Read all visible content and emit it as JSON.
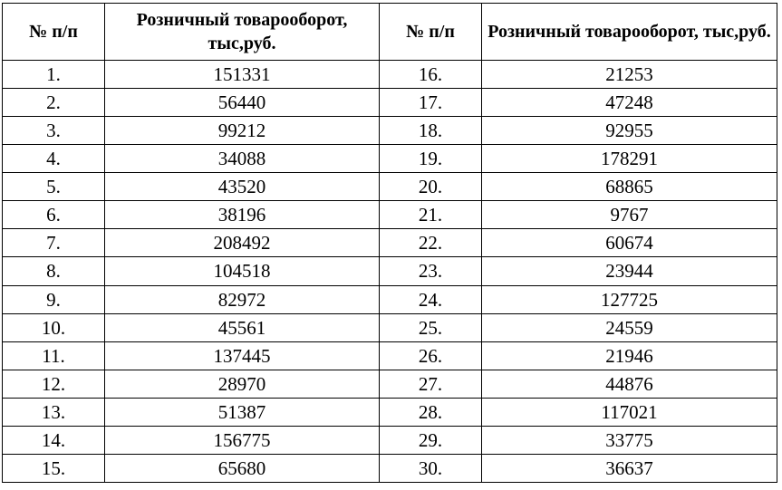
{
  "headers": {
    "num_left": "№ п/п",
    "value_left": "Розничный товарооборот, тыс,руб.",
    "num_right": "№ п/п",
    "value_right": "Розничный товарооборот, тыс,руб."
  },
  "rows": [
    {
      "left_num": "1.",
      "left_val": "151331",
      "right_num": "16.",
      "right_val": "21253"
    },
    {
      "left_num": "2.",
      "left_val": "56440",
      "right_num": "17.",
      "right_val": "47248"
    },
    {
      "left_num": "3.",
      "left_val": "99212",
      "right_num": "18.",
      "right_val": "92955"
    },
    {
      "left_num": "4.",
      "left_val": "34088",
      "right_num": "19.",
      "right_val": "178291"
    },
    {
      "left_num": "5.",
      "left_val": "43520",
      "right_num": "20.",
      "right_val": "68865"
    },
    {
      "left_num": "6.",
      "left_val": "38196",
      "right_num": "21.",
      "right_val": "9767"
    },
    {
      "left_num": "7.",
      "left_val": "208492",
      "right_num": "22.",
      "right_val": "60674"
    },
    {
      "left_num": "8.",
      "left_val": "104518",
      "right_num": "23.",
      "right_val": "23944"
    },
    {
      "left_num": "9.",
      "left_val": "82972",
      "right_num": "24.",
      "right_val": "127725"
    },
    {
      "left_num": "10.",
      "left_val": "45561",
      "right_num": "25.",
      "right_val": "24559"
    },
    {
      "left_num": "11.",
      "left_val": "137445",
      "right_num": "26.",
      "right_val": "21946"
    },
    {
      "left_num": "12.",
      "left_val": "28970",
      "right_num": "27.",
      "right_val": "44876"
    },
    {
      "left_num": "13.",
      "left_val": "51387",
      "right_num": "28.",
      "right_val": "117021"
    },
    {
      "left_num": "14.",
      "left_val": "156775",
      "right_num": "29.",
      "right_val": "33775"
    },
    {
      "left_num": "15.",
      "left_val": "65680",
      "right_num": "30.",
      "right_val": "36637"
    }
  ]
}
